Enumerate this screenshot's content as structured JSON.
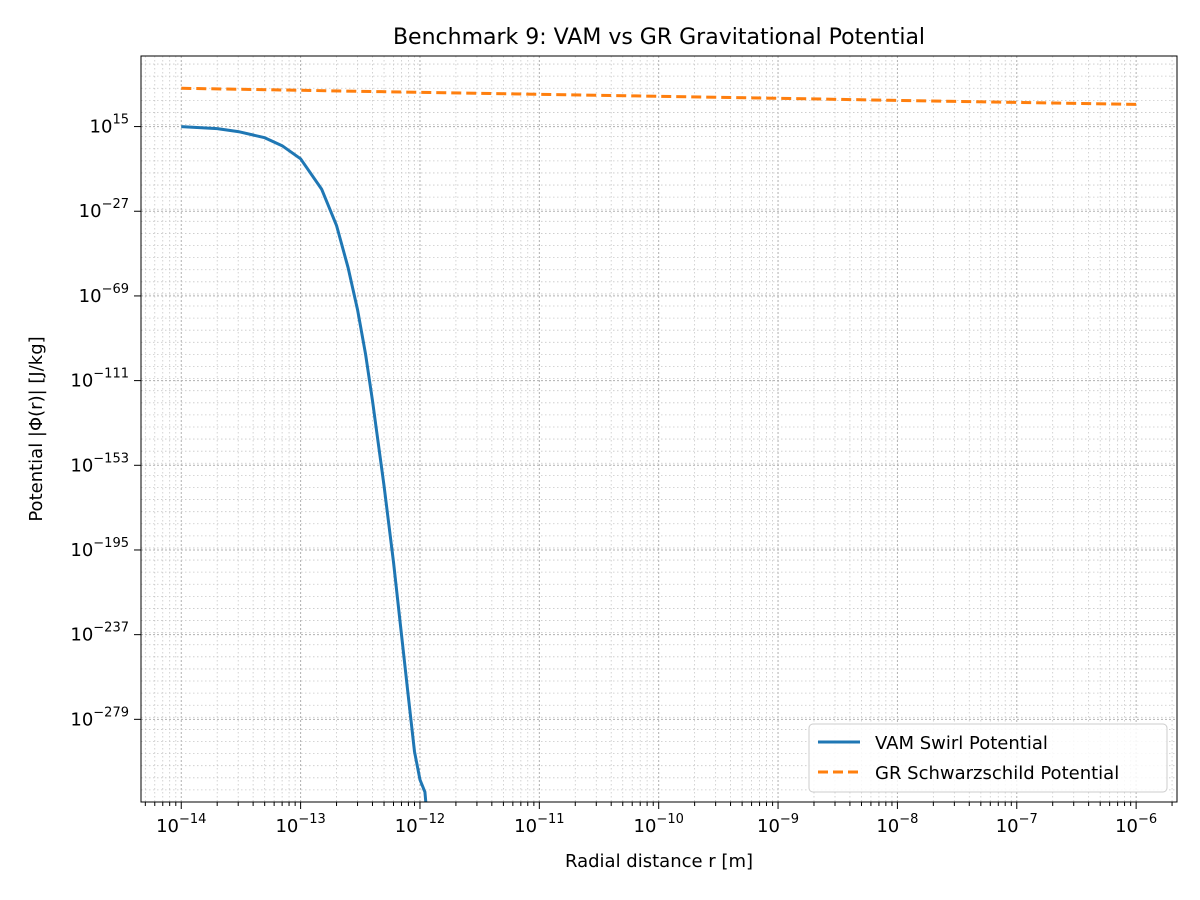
{
  "chart_data": {
    "type": "line",
    "title": "Benchmark 9: VAM vs GR Gravitational Potential",
    "xlabel": "Radial distance r [m]",
    "ylabel": "Potential |Φ(r)| [J/kg]",
    "x_scale": "log",
    "y_scale": "log",
    "xlim": [
      4.6e-15,
      2.2e-06
    ],
    "y_log10_lim": [
      -320,
      50
    ],
    "x_ticks": [
      {
        "label_base": "10",
        "label_exp": "−14",
        "value": 1e-14
      },
      {
        "label_base": "10",
        "label_exp": "−13",
        "value": 1e-13
      },
      {
        "label_base": "10",
        "label_exp": "−12",
        "value": 1e-12
      },
      {
        "label_base": "10",
        "label_exp": "−11",
        "value": 1e-11
      },
      {
        "label_base": "10",
        "label_exp": "−10",
        "value": 1e-10
      },
      {
        "label_base": "10",
        "label_exp": "−9",
        "value": 1e-09
      },
      {
        "label_base": "10",
        "label_exp": "−8",
        "value": 1e-08
      },
      {
        "label_base": "10",
        "label_exp": "−7",
        "value": 1e-07
      },
      {
        "label_base": "10",
        "label_exp": "−6",
        "value": 1e-06
      }
    ],
    "y_ticks": [
      {
        "label_base": "10",
        "label_exp": "15",
        "log10": 15
      },
      {
        "label_base": "10",
        "label_exp": "−27",
        "log10": -27
      },
      {
        "label_base": "10",
        "label_exp": "−69",
        "log10": -69
      },
      {
        "label_base": "10",
        "label_exp": "−111",
        "log10": -111
      },
      {
        "label_base": "10",
        "label_exp": "−153",
        "log10": -153
      },
      {
        "label_base": "10",
        "label_exp": "−195",
        "log10": -195
      },
      {
        "label_base": "10",
        "label_exp": "−237",
        "log10": -237
      },
      {
        "label_base": "10",
        "label_exp": "−279",
        "log10": -279
      }
    ],
    "grid": true,
    "legend_position": "bottom-right",
    "series": [
      {
        "name": "VAM Swirl Potential",
        "color": "#1f77b4",
        "style": "solid",
        "x": [
          1e-14,
          2e-14,
          3e-14,
          5e-14,
          7e-14,
          1e-13,
          1.5e-13,
          2e-13,
          2.5e-13,
          3e-13,
          3.5e-13,
          4e-13,
          5e-13,
          6e-13,
          7e-13,
          8e-13,
          9e-13,
          1e-12,
          1.1e-12,
          1.12e-12
        ],
        "y_log10": [
          15,
          14,
          12.5,
          9.5,
          5.5,
          -1,
          -16,
          -34,
          -55,
          -76,
          -98,
          -121,
          -163,
          -201,
          -237,
          -268,
          -295,
          -309,
          -315,
          -320
        ]
      },
      {
        "name": "GR Schwarzschild Potential",
        "color": "#ff7f0e",
        "style": "dashed",
        "x": [
          1e-14,
          1e-13,
          1e-12,
          1e-11,
          1e-10,
          1e-09,
          1e-08,
          1e-07,
          1e-06
        ],
        "y_log10": [
          34,
          33,
          32,
          31,
          30,
          29,
          28,
          27,
          26
        ]
      }
    ]
  }
}
